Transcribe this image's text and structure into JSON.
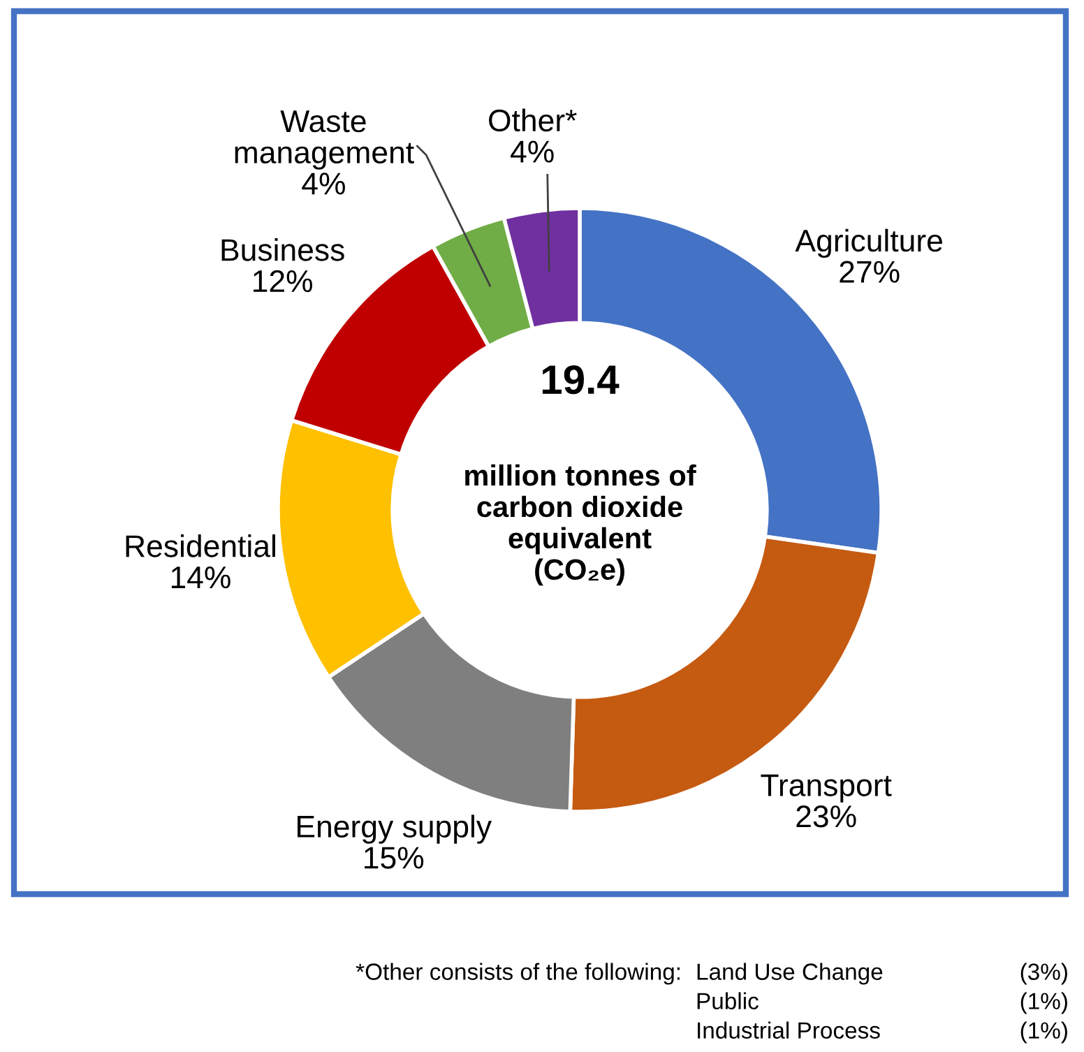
{
  "chart_data": {
    "type": "donut",
    "categories": [
      "Agriculture",
      "Transport",
      "Energy supply",
      "Residential",
      "Business",
      "Waste\nmanagement",
      "Other*"
    ],
    "values": [
      27,
      23,
      15,
      14,
      12,
      4,
      4
    ],
    "value_labels": [
      "27%",
      "23%",
      "15%",
      "14%",
      "12%",
      "4%",
      "4%"
    ],
    "colors": [
      "#4472c4",
      "#c55a11",
      "#7f7f7f",
      "#ffc000",
      "#c00000",
      "#70ad47",
      "#7030a0"
    ],
    "annotations": [
      "19.4",
      "million tonnes of\ncarbon dioxide\nequivalent\n(CO₂e)",
      "*Other consists of the following:",
      "Land Use Change",
      "(3%)",
      "Public",
      "(1%)",
      "Industrial Process",
      "(1%)"
    ],
    "legend": false
  }
}
